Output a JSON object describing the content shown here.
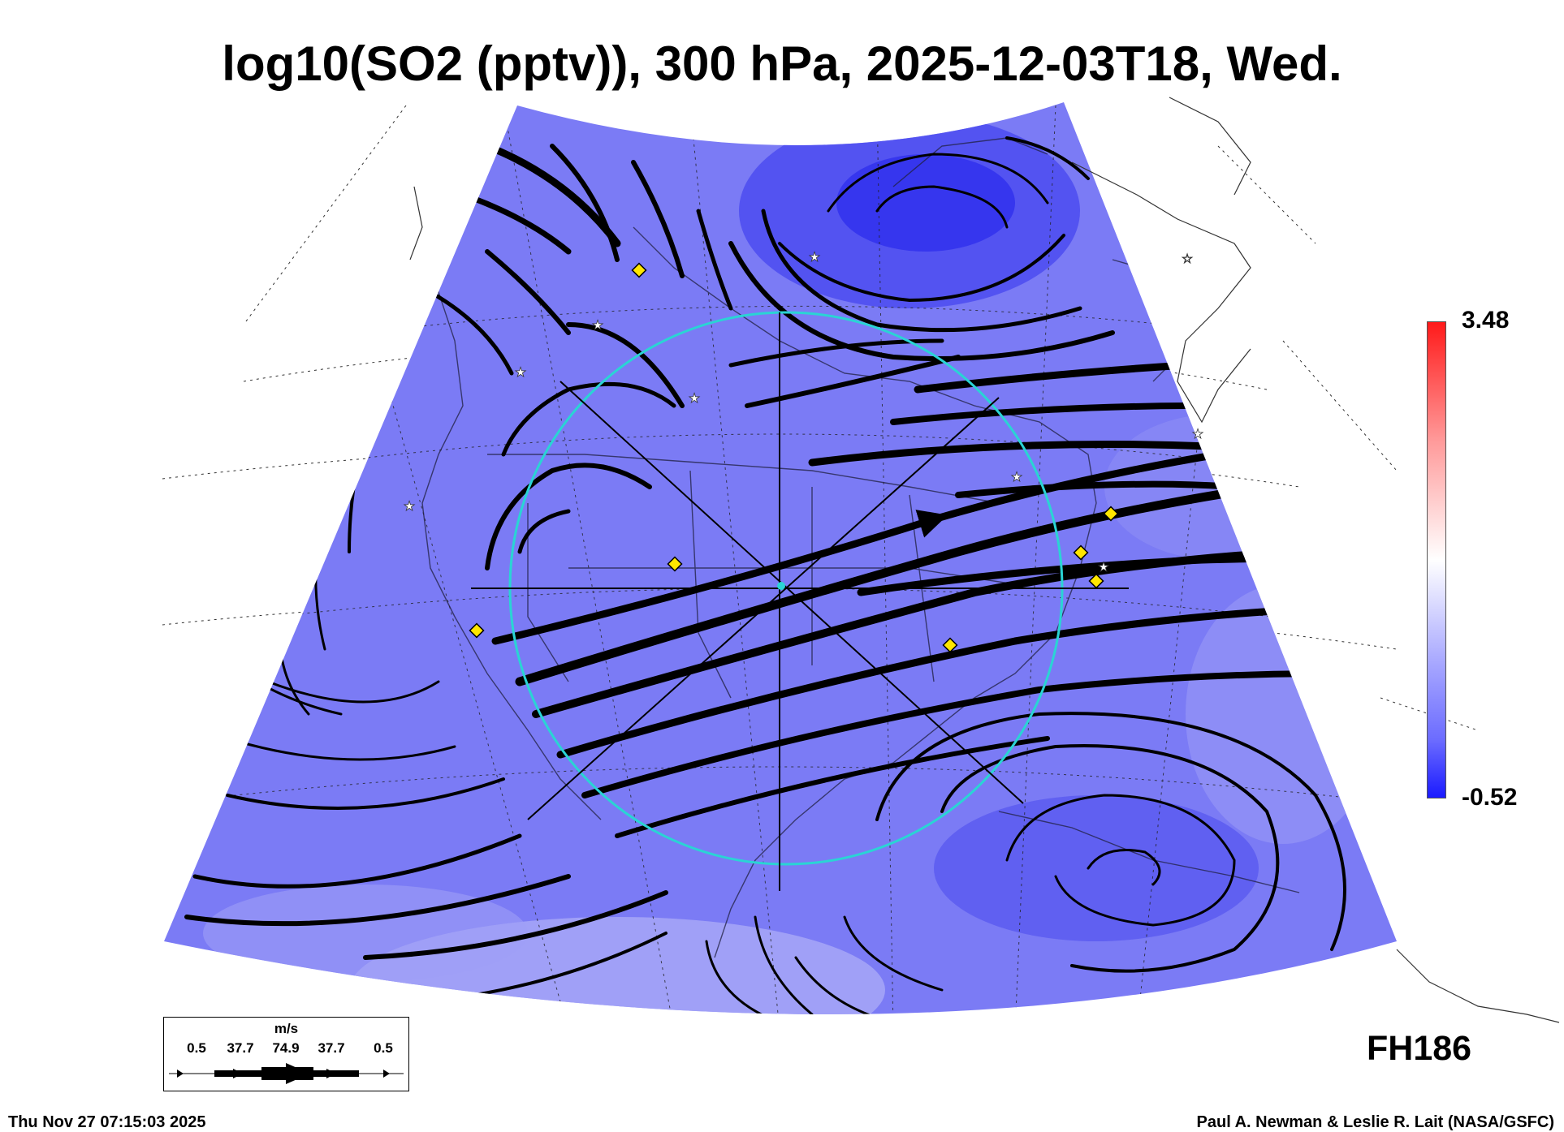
{
  "title": "log10(SO2 (pptv)), 300 hPa, 2025-12-03T18, Wed.",
  "colorbar": {
    "max_label": "3.48",
    "min_label": "-0.52",
    "colors": [
      "#ff1a1a",
      "#ffffff",
      "#1a1aff"
    ]
  },
  "forecast_hour": "FH186",
  "wind_legend": {
    "unit": "m/s",
    "ticks": [
      "0.5",
      "37.7",
      "74.9",
      "37.7",
      "0.5"
    ]
  },
  "footer": {
    "timestamp": "Thu Nov 27 07:15:03 2025",
    "credit": "Paul A. Newman & Leslie R. Lait (NASA/GSFC)"
  },
  "colors": {
    "field": "#7b7bf5",
    "streamline": "#000000",
    "ring": "#2ad4d4",
    "site_marker": "#ffe600"
  }
}
